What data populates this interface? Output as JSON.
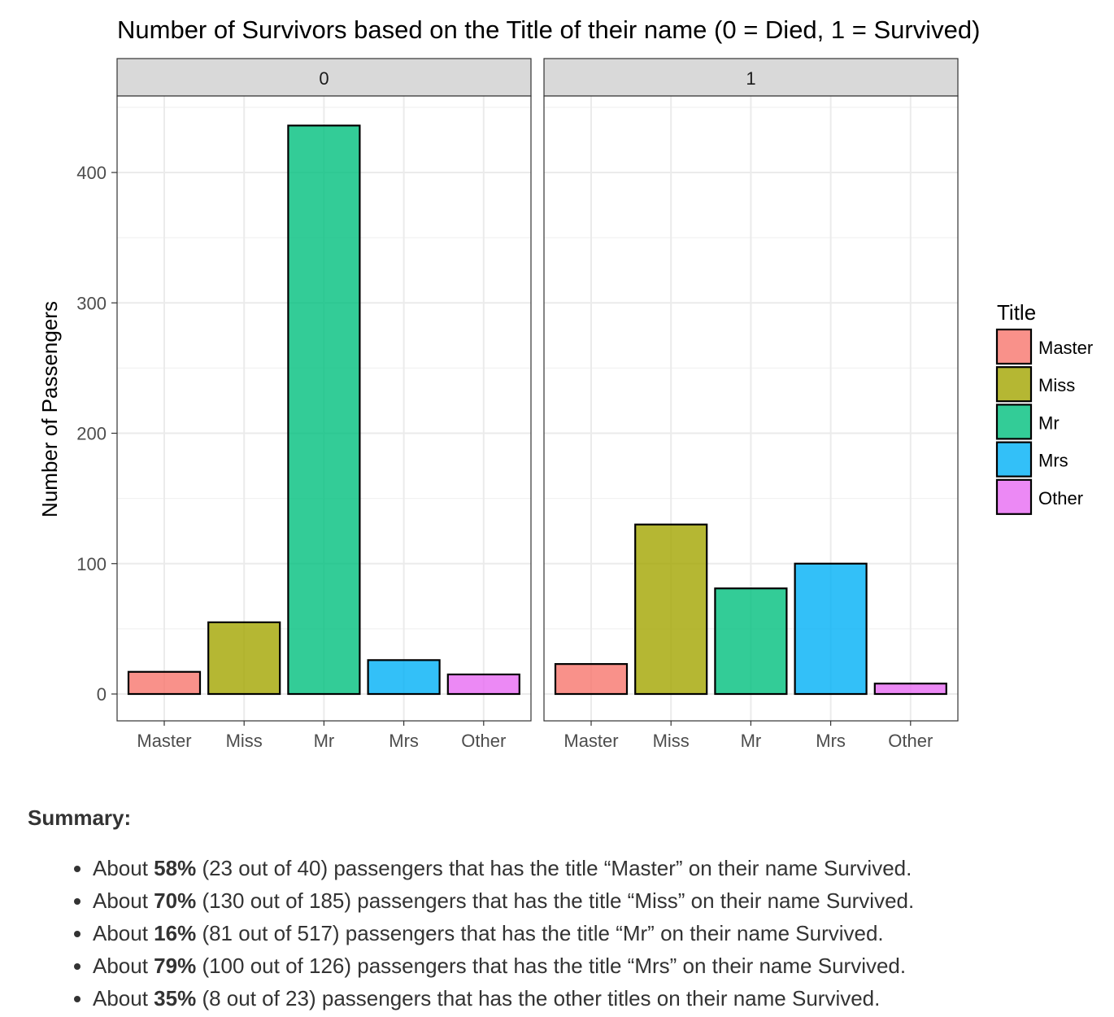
{
  "chart_data": {
    "type": "bar",
    "title": "Number of Survivors based on the Title of their name (0 = Died, 1 = Survived)",
    "ylabel": "Number of Passengers",
    "xlabel": "",
    "ylim": [
      0,
      450
    ],
    "yticks": [
      0,
      100,
      200,
      300,
      400
    ],
    "grid": true,
    "legend": {
      "title": "Title",
      "placement": "right"
    },
    "categories": [
      "Master",
      "Miss",
      "Mr",
      "Mrs",
      "Other"
    ],
    "colors": {
      "Master": "#F8766D",
      "Miss": "#A3A500",
      "Mr": "#00BF7D",
      "Mrs": "#00B0F6",
      "Other": "#E76BF3"
    },
    "facets": [
      {
        "label": "0",
        "values": [
          17,
          55,
          436,
          26,
          15
        ]
      },
      {
        "label": "1",
        "values": [
          23,
          130,
          81,
          100,
          8
        ]
      }
    ]
  },
  "summary": {
    "heading": "Summary:",
    "items": [
      {
        "prefix": "About ",
        "pct": "58%",
        "rest": " (23 out of 40) passengers that has the title “Master” on their name Survived."
      },
      {
        "prefix": "About ",
        "pct": "70%",
        "rest": " (130 out of 185) passengers that has the title “Miss” on their name Survived."
      },
      {
        "prefix": "About ",
        "pct": "16%",
        "rest": " (81 out of 517) passengers that has the title “Mr” on their name Survived."
      },
      {
        "prefix": "About ",
        "pct": "79%",
        "rest": " (100 out of 126) passengers that has the title “Mrs” on their name Survived."
      },
      {
        "prefix": "About ",
        "pct": "35%",
        "rest": " (8 out of 23) passengers that has the other titles on their name Survived."
      }
    ]
  }
}
